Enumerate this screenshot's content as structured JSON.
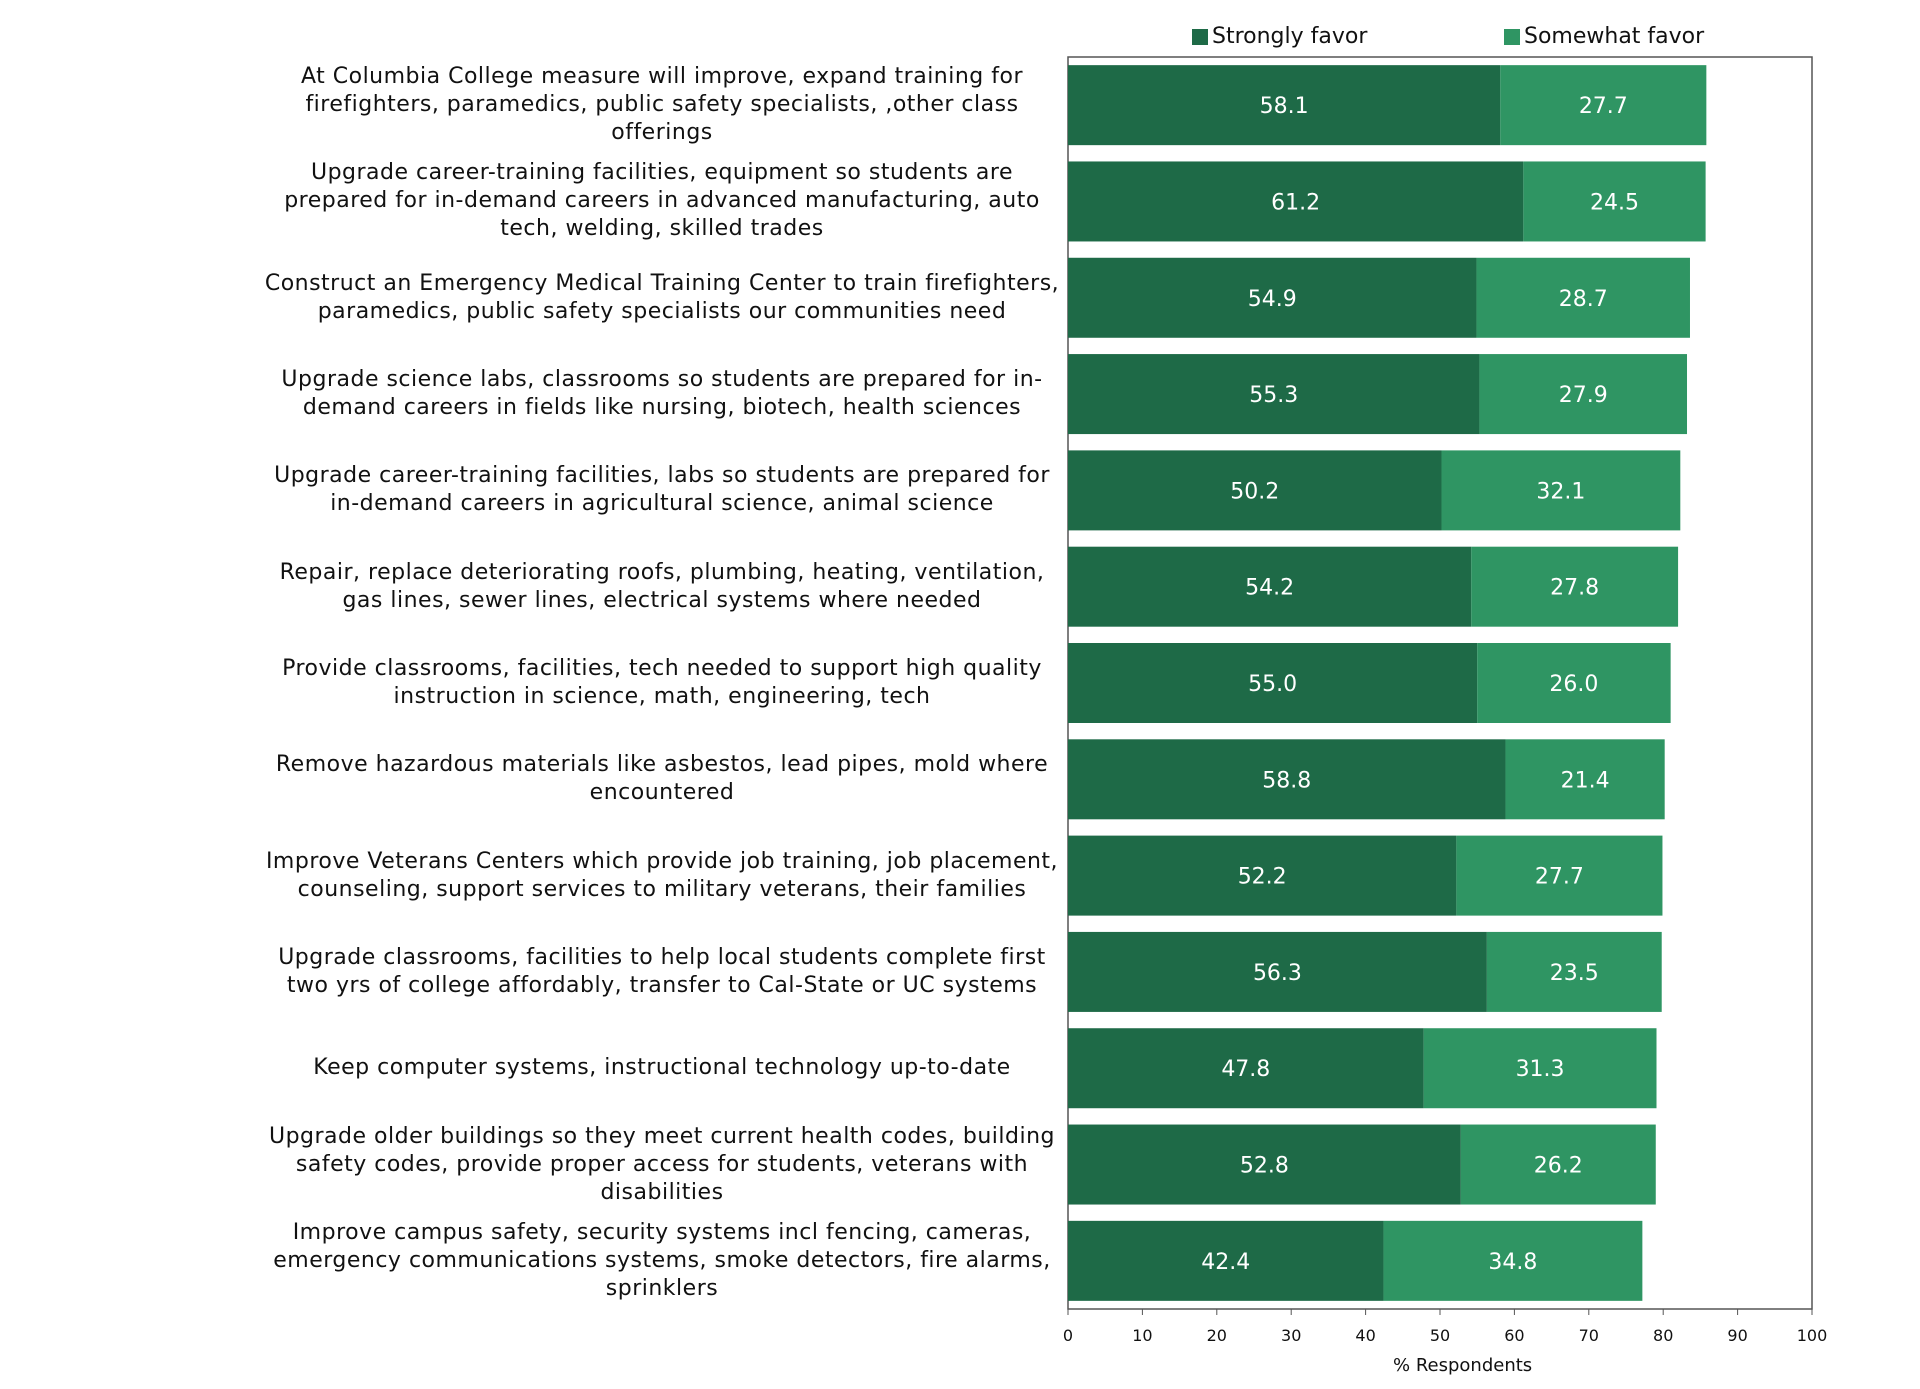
{
  "chart_data": {
    "type": "bar",
    "orientation": "horizontal",
    "stacked": true,
    "categories": [
      "At Columbia College measure will improve, expand training for firefighters, paramedics, public safety specialists, ,other class offerings",
      "Upgrade career-training facilities, equipment so students are prepared for in-demand careers in advanced manufacturing, auto tech, welding, skilled trades",
      "Construct an Emergency Medical Training Center to train firefighters, paramedics, public safety specialists our communities need",
      "Upgrade science labs, classrooms so students are prepared for in-demand careers in fields like nursing, biotech, health sciences",
      "Upgrade career-training facilities, labs so students are prepared for in-demand careers in agricultural science, animal science",
      "Repair, replace deteriorating roofs, plumbing, heating, ventilation, gas lines, sewer lines, electrical systems where needed",
      "Provide classrooms, facilities, tech needed to support high quality instruction in science, math, engineering, tech",
      "Remove hazardous materials like asbestos, lead pipes, mold where encountered",
      "Improve Veterans Centers which provide job training, job placement, counseling, support services to military veterans, their families",
      "Upgrade classrooms, facilities to help local students complete first two yrs of college affordably, transfer to Cal-State or UC systems",
      "Keep computer systems, instructional technology up-to-date",
      "Upgrade older buildings so they meet current health codes, building safety codes, provide proper access for students, veterans with disabilities",
      "Improve campus safety, security systems incl fencing, cameras, emergency communications systems, smoke detectors, fire alarms, sprinklers"
    ],
    "series": [
      {
        "name": "Strongly favor",
        "color": "#1e6a47",
        "values": [
          58.1,
          61.2,
          54.9,
          55.3,
          50.2,
          54.2,
          55.0,
          58.8,
          52.2,
          56.3,
          47.8,
          52.8,
          42.4
        ]
      },
      {
        "name": "Somewhat favor",
        "color": "#2f9563",
        "values": [
          27.7,
          24.5,
          28.7,
          27.9,
          32.1,
          27.8,
          26.0,
          21.4,
          27.7,
          23.5,
          31.3,
          26.2,
          34.8
        ]
      }
    ],
    "value_labels": {
      "Strongly favor": [
        "58.1",
        "61.2",
        "54.9",
        "55.3",
        "50.2",
        "54.2",
        "55.0",
        "58.8",
        "52.2",
        "56.3",
        "47.8",
        "52.8",
        "42.4"
      ],
      "Somewhat favor": [
        "27.7",
        "24.5",
        "28.7",
        "27.9",
        "32.1",
        "27.8",
        "26.0",
        "21.4",
        "27.7",
        "23.5",
        "31.3",
        "26.2",
        "34.8"
      ]
    },
    "xlabel": "% Respondents",
    "xlim": [
      0,
      100
    ],
    "xticks": [
      0,
      10,
      20,
      30,
      40,
      50,
      60,
      70,
      80,
      90,
      100
    ],
    "legend_position": "top",
    "grid": false
  }
}
